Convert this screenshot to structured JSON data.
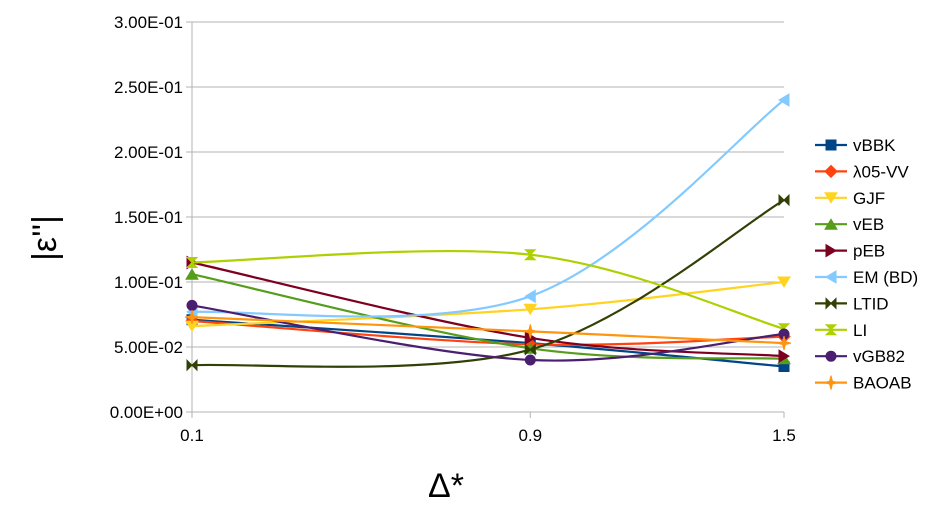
{
  "chart_data": {
    "type": "line",
    "title": "",
    "xlabel": "Δ*",
    "ylabel": "|ε''|",
    "x": [
      "0.1",
      "0.9",
      "1.5"
    ],
    "x_tick_labels": [
      "0.1",
      "0.9",
      "1.5"
    ],
    "y_tick_labels": [
      "0.00E+00",
      "5.00E-02",
      "1.00E-01",
      "1.50E-01",
      "2.00E-01",
      "2.50E-01",
      "3.00E-01"
    ],
    "ylim": [
      0,
      0.3
    ],
    "grid": {
      "horizontal": true,
      "vertical": false
    },
    "legend_position": "right",
    "smooth_lines": true,
    "series": [
      {
        "name": "vBBK",
        "values": [
          0.071,
          0.053,
          0.035
        ],
        "color": "#004586",
        "marker": "square"
      },
      {
        "name": "λ05-VV",
        "values": [
          0.07,
          0.052,
          0.058
        ],
        "color": "#ff420e",
        "marker": "diamond"
      },
      {
        "name": "GJF",
        "values": [
          0.066,
          0.079,
          0.1
        ],
        "color": "#ffd320",
        "marker": "triangle-down"
      },
      {
        "name": "vEB",
        "values": [
          0.106,
          0.049,
          0.041
        ],
        "color": "#579d1c",
        "marker": "triangle-up"
      },
      {
        "name": "pEB",
        "values": [
          0.115,
          0.057,
          0.043
        ],
        "color": "#7e0021",
        "marker": "triangle-right"
      },
      {
        "name": "EM (BD)",
        "values": [
          0.077,
          0.089,
          0.24
        ],
        "color": "#83caff",
        "marker": "triangle-left"
      },
      {
        "name": "LTID",
        "values": [
          0.036,
          0.048,
          0.163
        ],
        "color": "#314004",
        "marker": "bowtie"
      },
      {
        "name": "LI",
        "values": [
          0.115,
          0.121,
          0.064
        ],
        "color": "#aecf00",
        "marker": "hourglass"
      },
      {
        "name": "vGB82",
        "values": [
          0.082,
          0.04,
          0.06
        ],
        "color": "#4b1f6f",
        "marker": "circle"
      },
      {
        "name": "BAOAB",
        "values": [
          0.073,
          0.062,
          0.053
        ],
        "color": "#ff950e",
        "marker": "star"
      }
    ]
  }
}
